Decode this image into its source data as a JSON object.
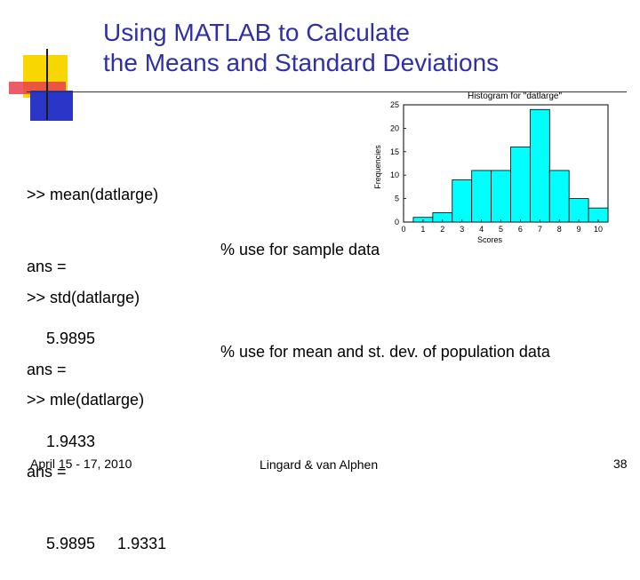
{
  "slide": {
    "title_line1": "Using MATLAB to Calculate",
    "title_line2": "the Means and Standard Deviations"
  },
  "blocks": [
    {
      "cmd": ">> mean(datlarge)",
      "ans_label": "ans =",
      "value": "5.9895",
      "comment": ""
    },
    {
      "cmd": ">> std(datlarge)",
      "ans_label": "ans =",
      "value": "1.9433",
      "comment": "% use for sample data"
    },
    {
      "cmd": ">> mle(datlarge)",
      "ans_label": "ans =",
      "value": "5.9895     1.9331",
      "comment": "% use for mean and st. dev. of population data"
    }
  ],
  "footer": {
    "date": "April 15 - 17, 2010",
    "author": "Lingard & van Alphen",
    "page": "38"
  },
  "colors": {
    "title": "#2f2fa8",
    "bar_fill": "#00ffff",
    "yellow": "#f8d600",
    "red": "#e8404e",
    "blue": "#2a36c8"
  },
  "chart_data": {
    "type": "bar",
    "title": "Histogram for \"datlarge\"",
    "xlabel": "Scores",
    "ylabel": "Frequencies",
    "categories": [
      1,
      2,
      3,
      4,
      5,
      6,
      7,
      8,
      9,
      10
    ],
    "values": [
      1,
      2,
      9,
      11,
      11,
      16,
      24,
      11,
      5,
      3
    ],
    "xticks": [
      "0",
      "1",
      "2",
      "3",
      "4",
      "5",
      "6",
      "7",
      "8",
      "9",
      "10"
    ],
    "yticks": [
      "0",
      "5",
      "10",
      "15",
      "20",
      "25"
    ],
    "xlim": [
      0,
      10.5
    ],
    "ylim": [
      0,
      25
    ],
    "grid": false
  }
}
